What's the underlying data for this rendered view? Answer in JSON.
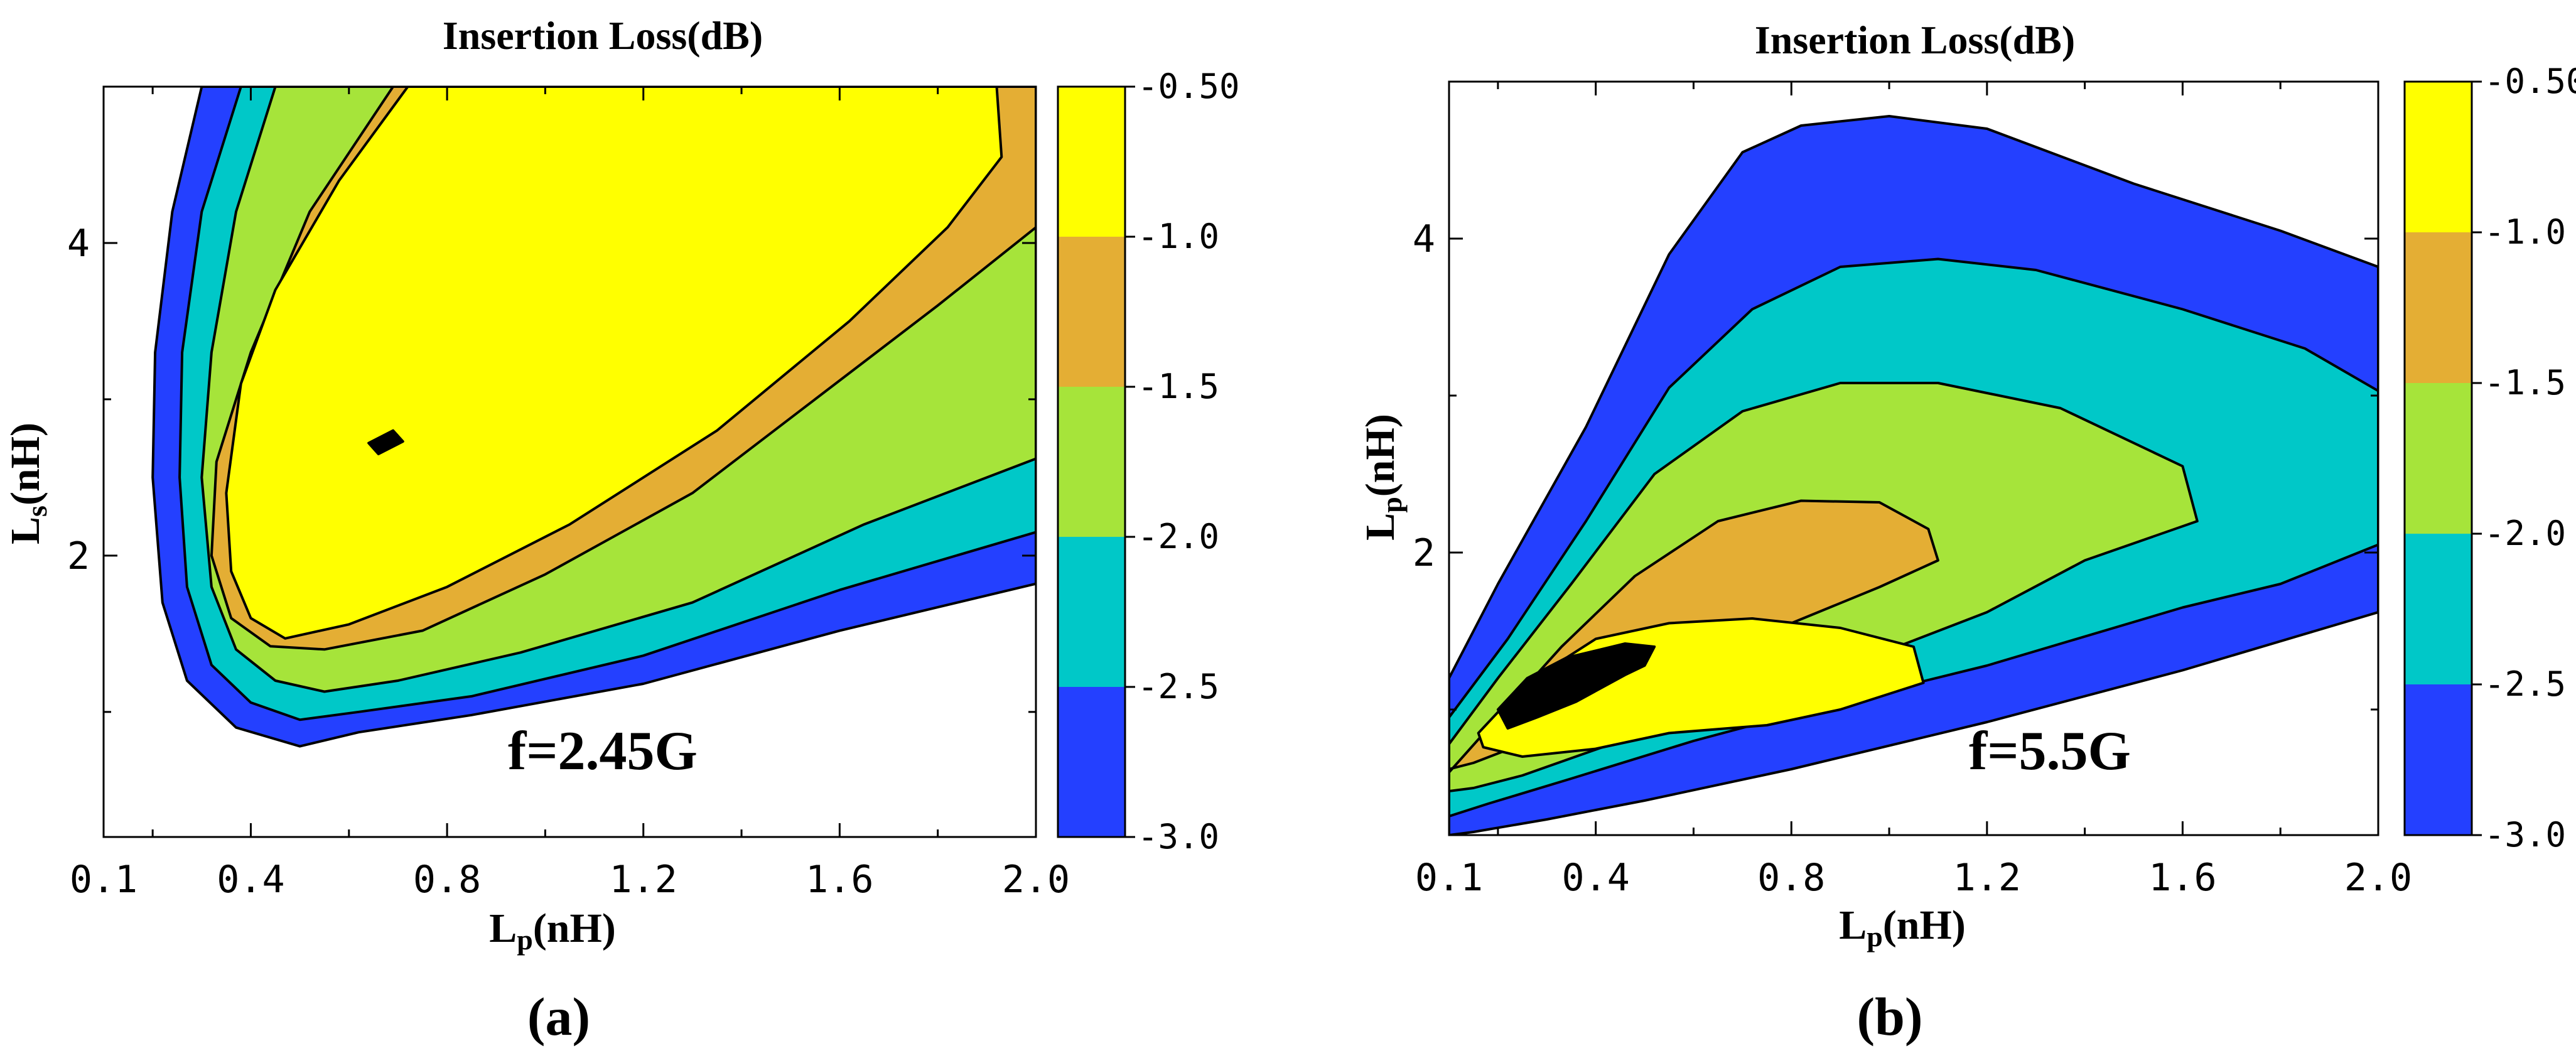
{
  "chart_data": [
    {
      "type": "contour",
      "panel_label": "(a)",
      "title": "Insertion Loss(dB)",
      "xlabel": "Lp(nH)",
      "ylabel": "Ls(nH)",
      "xlabel_main": "L",
      "xlabel_sub": "p",
      "xlabel_rest": "(nH)",
      "ylabel_main": "L",
      "ylabel_sub": "s",
      "ylabel_rest": "(nH)",
      "xlim": [
        0.1,
        2.0
      ],
      "ylim": [
        0.2,
        5.0
      ],
      "x_ticks": [
        0.1,
        0.4,
        0.8,
        1.2,
        1.6,
        2.0
      ],
      "x_tick_labels": [
        "0.1",
        "0.4",
        "0.8",
        "1.2",
        "1.6",
        "2.0"
      ],
      "y_ticks": [
        2,
        4
      ],
      "y_tick_labels": [
        "2",
        "4"
      ],
      "annotation": "f=2.45G",
      "contour_levels": [
        -3.0,
        -2.5,
        -2.0,
        -1.5,
        -1.0,
        -0.5
      ],
      "colorbar_tick_labels": [
        "-0.50",
        "-1.0",
        "-1.5",
        "-2.0",
        "-2.5",
        "-3.0"
      ],
      "level_colors": [
        "#2440ff",
        "#00c8c8",
        "#a6e43a",
        "#e4ae34",
        "#ffff00"
      ],
      "regions": [
        {
          "level_min": -3.0,
          "points": [
            [
              0.3,
              5.0
            ],
            [
              0.24,
              4.2
            ],
            [
              0.205,
              3.3
            ],
            [
              0.2,
              2.5
            ],
            [
              0.22,
              1.7
            ],
            [
              0.27,
              1.2
            ],
            [
              0.37,
              0.9
            ],
            [
              0.5,
              0.78
            ],
            [
              0.62,
              0.87
            ],
            [
              0.85,
              0.98
            ],
            [
              1.2,
              1.18
            ],
            [
              1.6,
              1.52
            ],
            [
              2.0,
              1.82
            ],
            [
              2.0,
              5.0
            ]
          ]
        },
        {
          "level_min": -2.5,
          "points": [
            [
              0.38,
              5.0
            ],
            [
              0.3,
              4.2
            ],
            [
              0.26,
              3.3
            ],
            [
              0.255,
              2.5
            ],
            [
              0.27,
              1.8
            ],
            [
              0.32,
              1.3
            ],
            [
              0.4,
              1.06
            ],
            [
              0.5,
              0.95
            ],
            [
              0.62,
              1.0
            ],
            [
              0.85,
              1.1
            ],
            [
              1.2,
              1.36
            ],
            [
              1.6,
              1.78
            ],
            [
              2.0,
              2.15
            ],
            [
              2.0,
              5.0
            ]
          ]
        },
        {
          "level_min": -2.0,
          "points": [
            [
              0.45,
              5.0
            ],
            [
              0.37,
              4.2
            ],
            [
              0.32,
              3.3
            ],
            [
              0.3,
              2.5
            ],
            [
              0.32,
              1.8
            ],
            [
              0.37,
              1.4
            ],
            [
              0.45,
              1.2
            ],
            [
              0.55,
              1.13
            ],
            [
              0.7,
              1.2
            ],
            [
              0.95,
              1.38
            ],
            [
              1.3,
              1.7
            ],
            [
              1.65,
              2.2
            ],
            [
              2.0,
              2.62
            ],
            [
              2.0,
              5.0
            ]
          ]
        },
        {
          "level_min": -1.5,
          "points": [
            [
              0.69,
              5.0
            ],
            [
              0.52,
              4.2
            ],
            [
              0.4,
              3.3
            ],
            [
              0.33,
              2.6
            ],
            [
              0.32,
              2.0
            ],
            [
              0.36,
              1.6
            ],
            [
              0.44,
              1.42
            ],
            [
              0.55,
              1.4
            ],
            [
              0.75,
              1.52
            ],
            [
              1.0,
              1.88
            ],
            [
              1.3,
              2.4
            ],
            [
              1.55,
              3.0
            ],
            [
              1.8,
              3.6
            ],
            [
              2.0,
              4.1
            ],
            [
              2.0,
              5.0
            ]
          ]
        },
        {
          "level_min": -1.0,
          "points": [
            [
              0.72,
              5.0
            ],
            [
              0.58,
              4.4
            ],
            [
              0.45,
              3.7
            ],
            [
              0.38,
              3.1
            ],
            [
              0.35,
              2.4
            ],
            [
              0.36,
              1.9
            ],
            [
              0.4,
              1.6
            ],
            [
              0.47,
              1.47
            ],
            [
              0.6,
              1.56
            ],
            [
              0.8,
              1.8
            ],
            [
              1.05,
              2.2
            ],
            [
              1.35,
              2.8
            ],
            [
              1.62,
              3.5
            ],
            [
              1.82,
              4.1
            ],
            [
              1.93,
              4.55
            ],
            [
              1.92,
              5.0
            ]
          ]
        },
        {
          "level_min": -0.5,
          "points": [
            [
              0.64,
              2.72
            ],
            [
              0.69,
              2.8
            ],
            [
              0.71,
              2.73
            ],
            [
              0.66,
              2.65
            ]
          ]
        }
      ]
    },
    {
      "type": "contour",
      "panel_label": "(b)",
      "title": "Insertion Loss(dB)",
      "xlabel": "Lp(nH)",
      "ylabel": "Lp(nH)",
      "xlabel_main": "L",
      "xlabel_sub": "p",
      "xlabel_rest": "(nH)",
      "ylabel_main": "L",
      "ylabel_sub": "p",
      "ylabel_rest": "(nH)",
      "xlim": [
        0.1,
        2.0
      ],
      "ylim": [
        0.2,
        5.0
      ],
      "x_ticks": [
        0.1,
        0.4,
        0.8,
        1.2,
        1.6,
        2.0
      ],
      "x_tick_labels": [
        "0.1",
        "0.4",
        "0.8",
        "1.2",
        "1.6",
        "2.0"
      ],
      "y_ticks": [
        2,
        4
      ],
      "y_tick_labels": [
        "2",
        "4"
      ],
      "annotation": "f=5.5G",
      "contour_levels": [
        -3.0,
        -2.5,
        -2.0,
        -1.5,
        -1.0,
        -0.5
      ],
      "colorbar_tick_labels": [
        "-0.50",
        "-1.0",
        "-1.5",
        "-2.0",
        "-2.5",
        "-3.0"
      ],
      "level_colors": [
        "#2440ff",
        "#00c8c8",
        "#a6e43a",
        "#e4ae34",
        "#ffff00"
      ],
      "regions": [
        {
          "level_min": -3.0,
          "points": [
            [
              0.1,
              1.2
            ],
            [
              0.2,
              1.8
            ],
            [
              0.38,
              2.8
            ],
            [
              0.55,
              3.9
            ],
            [
              0.7,
              4.55
            ],
            [
              0.82,
              4.72
            ],
            [
              1.0,
              4.78
            ],
            [
              1.2,
              4.7
            ],
            [
              1.5,
              4.35
            ],
            [
              1.8,
              4.05
            ],
            [
              2.0,
              3.82
            ],
            [
              2.0,
              1.62
            ],
            [
              1.6,
              1.25
            ],
            [
              1.2,
              0.92
            ],
            [
              0.8,
              0.62
            ],
            [
              0.5,
              0.42
            ],
            [
              0.3,
              0.3
            ],
            [
              0.15,
              0.22
            ],
            [
              0.1,
              0.2
            ]
          ]
        },
        {
          "level_min": -2.5,
          "points": [
            [
              0.1,
              0.95
            ],
            [
              0.22,
              1.45
            ],
            [
              0.38,
              2.2
            ],
            [
              0.55,
              3.05
            ],
            [
              0.72,
              3.55
            ],
            [
              0.9,
              3.82
            ],
            [
              1.1,
              3.87
            ],
            [
              1.3,
              3.8
            ],
            [
              1.6,
              3.55
            ],
            [
              1.85,
              3.3
            ],
            [
              2.0,
              3.03
            ],
            [
              2.0,
              2.05
            ],
            [
              1.8,
              1.8
            ],
            [
              1.6,
              1.65
            ],
            [
              1.2,
              1.28
            ],
            [
              0.9,
              1.05
            ],
            [
              0.6,
              0.8
            ],
            [
              0.35,
              0.56
            ],
            [
              0.18,
              0.4
            ],
            [
              0.1,
              0.32
            ]
          ]
        },
        {
          "level_min": -2.0,
          "points": [
            [
              0.1,
              0.78
            ],
            [
              0.2,
              1.2
            ],
            [
              0.35,
              1.8
            ],
            [
              0.52,
              2.5
            ],
            [
              0.7,
              2.9
            ],
            [
              0.9,
              3.08
            ],
            [
              1.1,
              3.08
            ],
            [
              1.35,
              2.92
            ],
            [
              1.6,
              2.55
            ],
            [
              1.63,
              2.2
            ],
            [
              1.4,
              1.95
            ],
            [
              1.2,
              1.62
            ],
            [
              0.95,
              1.32
            ],
            [
              0.7,
              1.08
            ],
            [
              0.45,
              0.8
            ],
            [
              0.25,
              0.58
            ],
            [
              0.15,
              0.5
            ],
            [
              0.1,
              0.48
            ]
          ]
        },
        {
          "level_min": -1.5,
          "points": [
            [
              0.1,
              0.6
            ],
            [
              0.2,
              0.95
            ],
            [
              0.33,
              1.4
            ],
            [
              0.48,
              1.85
            ],
            [
              0.65,
              2.2
            ],
            [
              0.82,
              2.33
            ],
            [
              0.98,
              2.32
            ],
            [
              1.08,
              2.15
            ],
            [
              1.1,
              1.95
            ],
            [
              0.98,
              1.78
            ],
            [
              0.8,
              1.55
            ],
            [
              0.6,
              1.3
            ],
            [
              0.4,
              1.02
            ],
            [
              0.25,
              0.78
            ],
            [
              0.15,
              0.66
            ],
            [
              0.1,
              0.62
            ]
          ]
        },
        {
          "level_min": -1.0,
          "points": [
            [
              0.16,
              0.85
            ],
            [
              0.22,
              1.05
            ],
            [
              0.3,
              1.25
            ],
            [
              0.4,
              1.45
            ],
            [
              0.55,
              1.55
            ],
            [
              0.72,
              1.58
            ],
            [
              0.9,
              1.52
            ],
            [
              1.05,
              1.4
            ],
            [
              1.07,
              1.17
            ],
            [
              0.9,
              1.0
            ],
            [
              0.75,
              0.9
            ],
            [
              0.55,
              0.85
            ],
            [
              0.4,
              0.75
            ],
            [
              0.25,
              0.7
            ],
            [
              0.17,
              0.76
            ]
          ]
        },
        {
          "level_min": -0.5,
          "points": [
            [
              0.2,
              1.0
            ],
            [
              0.26,
              1.2
            ],
            [
              0.34,
              1.33
            ],
            [
              0.46,
              1.42
            ],
            [
              0.52,
              1.4
            ],
            [
              0.5,
              1.28
            ],
            [
              0.46,
              1.22
            ],
            [
              0.36,
              1.05
            ],
            [
              0.28,
              0.95
            ],
            [
              0.22,
              0.88
            ]
          ]
        }
      ]
    }
  ]
}
